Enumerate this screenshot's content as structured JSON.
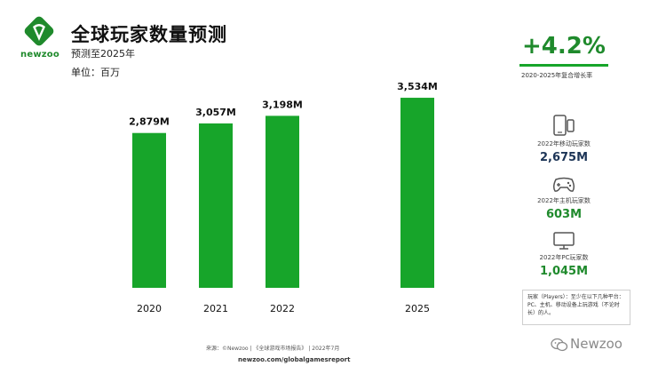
{
  "header": {
    "logo_text": "newzoo",
    "title": "全球玩家数量预测",
    "subtitle": "预测至2025年",
    "unit": "单位：百万"
  },
  "cagr": {
    "value": "+4.2%",
    "label": "2020-2025年复合增长率"
  },
  "chart_data": {
    "type": "bar",
    "categories": [
      "2020",
      "2021",
      "2022",
      "2025"
    ],
    "values": [
      2879,
      3057,
      3198,
      3534
    ],
    "data_labels": [
      "2,879M",
      "3,057M",
      "3,198M",
      "3,534M"
    ],
    "ylim": [
      0,
      3700
    ],
    "color": "#17a52a",
    "grid": false,
    "title": "全球玩家数量预测"
  },
  "panel": {
    "mobile": {
      "icon": "smartphone-tablet-icon",
      "label": "2022年移动玩家数",
      "value": "2,675M"
    },
    "console": {
      "icon": "gamepad-icon",
      "label": "2022年主机玩家数",
      "value": "603M"
    },
    "pc": {
      "icon": "monitor-icon",
      "label": "2022年PC玩家数",
      "value": "1,045M"
    }
  },
  "note": "玩家（Players）：至少在以下几种平台：PC、主机、移动设备上玩游戏（不论时长）的人。",
  "footer": {
    "source": "来源：©Newzoo | 《全球游戏市场报告》 | 2022年7月",
    "url": "newzoo.com/globalgamesreport",
    "watermark": "Newzoo"
  },
  "colors": {
    "accent": "#17a52a",
    "accent_dark": "#1f8a2c",
    "navy": "#1d3557"
  }
}
